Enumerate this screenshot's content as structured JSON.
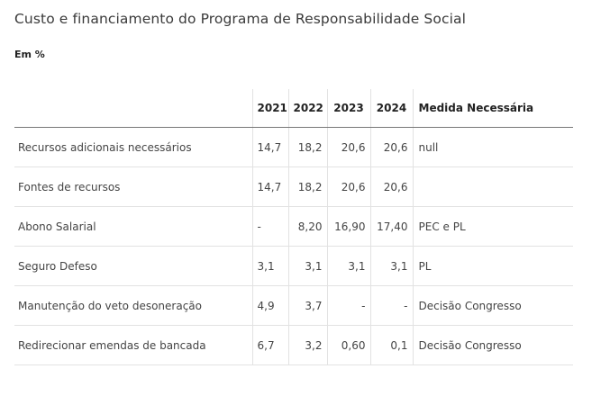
{
  "title": "Custo e financiamento do Programa de Responsabilidade Social",
  "unit": "Em %",
  "table": {
    "headers": [
      "",
      "2021",
      "2022",
      "2023",
      "2024",
      "Medida Necessária"
    ],
    "rows": [
      {
        "label": "Recursos adicionais necessários",
        "values": [
          "14,7",
          "18,2",
          "20,6",
          "20,6"
        ],
        "medida": "null"
      },
      {
        "label": "Fontes de recursos",
        "values": [
          "14,7",
          "18,2",
          "20,6",
          "20,6"
        ],
        "medida": ""
      },
      {
        "label": "Abono Salarial",
        "values": [
          "-",
          "8,20",
          "16,90",
          "17,40"
        ],
        "medida": "PEC e PL"
      },
      {
        "label": "Seguro Defeso",
        "values": [
          "3,1",
          "3,1",
          "3,1",
          "3,1"
        ],
        "medida": "PL"
      },
      {
        "label": "Manutenção do veto desoneração",
        "values": [
          "4,9",
          "3,7",
          "-",
          "-"
        ],
        "medida": "Decisão Congresso"
      },
      {
        "label": "Redirecionar emendas de bancada",
        "values": [
          "6,7",
          "3,2",
          "0,60",
          "0,1"
        ],
        "medida": "Decisão Congresso"
      }
    ]
  }
}
